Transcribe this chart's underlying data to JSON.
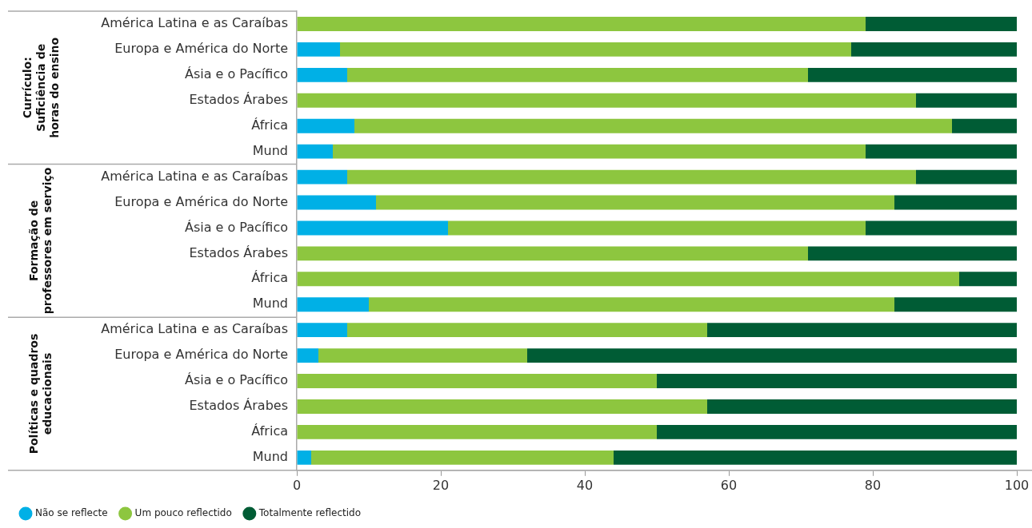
{
  "chart_data": {
    "type": "bar",
    "orientation": "horizontal",
    "stacked": true,
    "categories": [
      "América Latina e as Caraíbas",
      "Europa e América do Norte",
      "Ásia e o Pacífico",
      "Estados Árabes",
      "África",
      "Mund",
      "América Latina e as Caraíbas",
      "Europa e América do Norte",
      "Ásia e o Pacífico",
      "Estados Árabes",
      "África",
      "Mund",
      "América Latina e as Caraíbas",
      "Europa e América do Norte",
      "Ásia e o Pacífico",
      "Estados Árabes",
      "África",
      "Mund"
    ],
    "series": [
      {
        "name": "Não se reflecte",
        "color": "#00b0e6",
        "values": [
          0,
          6,
          7,
          0,
          8,
          5,
          7,
          11,
          21,
          0,
          0,
          10,
          7,
          3,
          0,
          0,
          0,
          2
        ]
      },
      {
        "name": "Um pouco reflectido",
        "color": "#8dc63f",
        "values": [
          79,
          71,
          64,
          86,
          83,
          74,
          79,
          72,
          58,
          71,
          92,
          73,
          50,
          29,
          50,
          57,
          50,
          42
        ]
      },
      {
        "name": "Totalmente reflectido",
        "color": "#005c35",
        "values": [
          21,
          23,
          29,
          14,
          9,
          21,
          14,
          17,
          21,
          29,
          8,
          17,
          43,
          68,
          50,
          43,
          50,
          56
        ]
      }
    ],
    "xlim": [
      0,
      100
    ],
    "xticks": [
      0,
      20,
      40,
      60,
      80,
      100
    ],
    "annotations": [
      "Currículo:\nSuficiência de\nhoras do ensino",
      "Formação de\nprofessores em serviço",
      "Políticas e quadros\neducacionais"
    ],
    "legend": "bottom left"
  }
}
